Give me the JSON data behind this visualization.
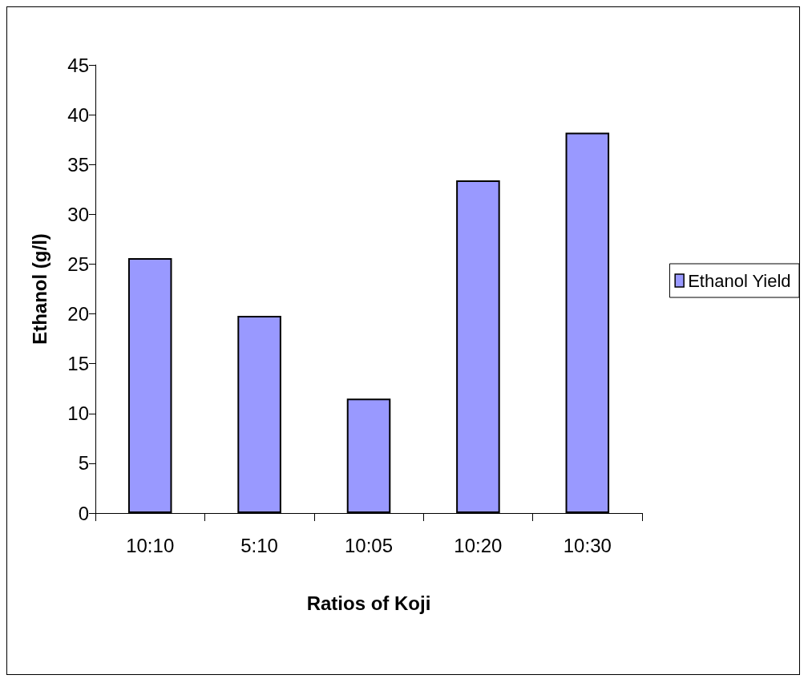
{
  "chart_data": {
    "type": "bar",
    "xlabel": "Ratios of Koji",
    "ylabel": "Ethanol (g/l)",
    "categories": [
      "10:10",
      "5:10",
      "10:05",
      "10:20",
      "10:30"
    ],
    "series": [
      {
        "name": "Ethanol Yield",
        "color": "#9999ff",
        "values": [
          25.6,
          19.8,
          11.5,
          33.4,
          38.2
        ]
      }
    ],
    "ylim": [
      0,
      45
    ],
    "yticks": [
      0,
      5,
      10,
      15,
      20,
      25,
      30,
      35,
      40,
      45
    ],
    "grid": false,
    "legend": "right"
  }
}
